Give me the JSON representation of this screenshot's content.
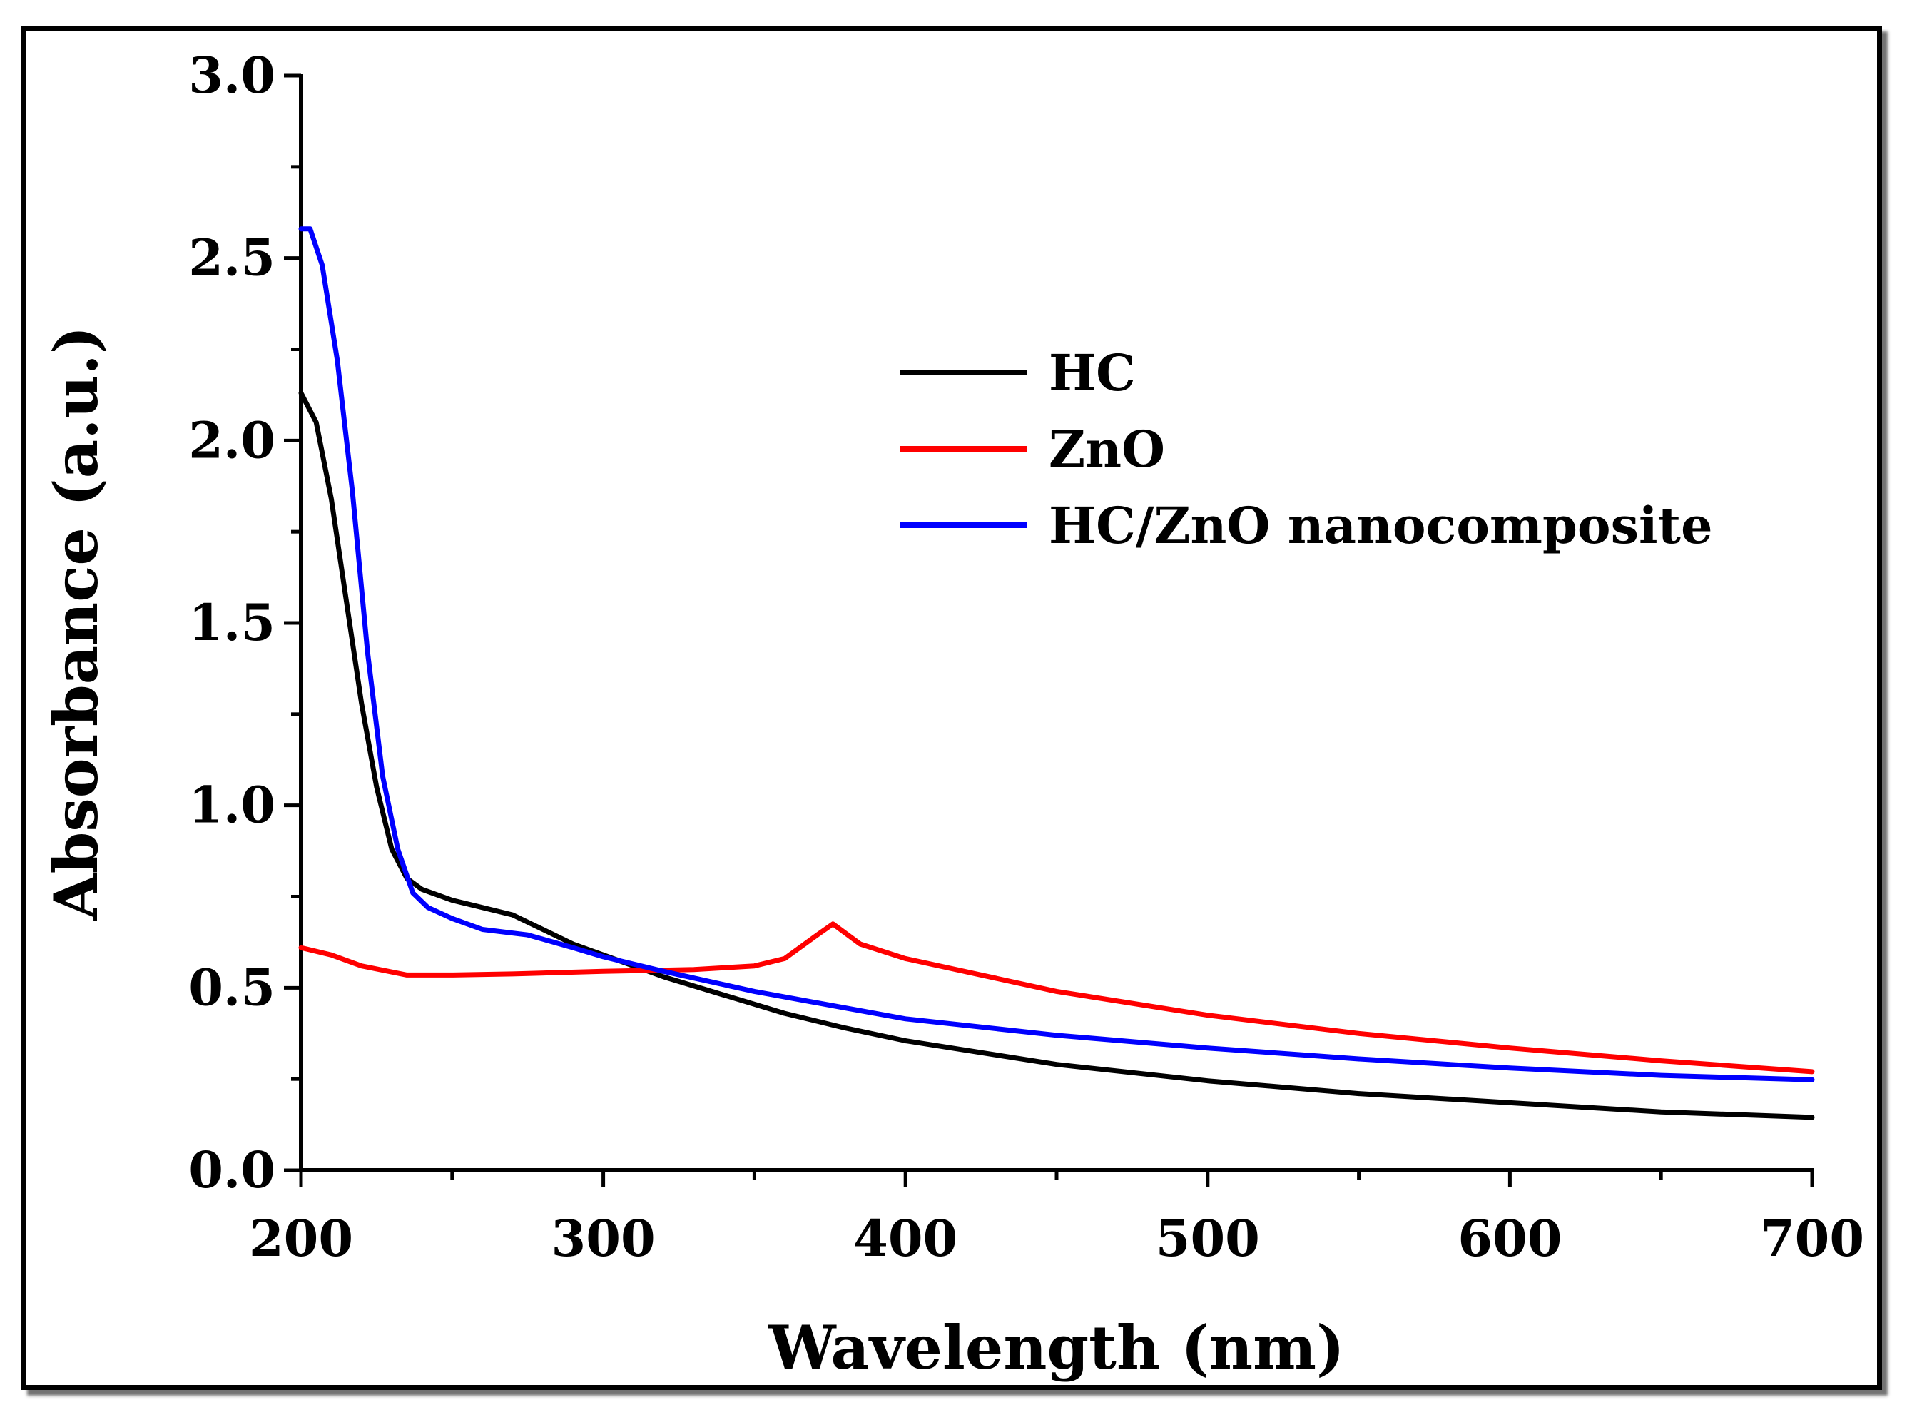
{
  "chart_data": {
    "type": "line",
    "title": "",
    "xlabel": "Wavelength (nm)",
    "ylabel": "Absorbance (a.u.)",
    "xlim": [
      200,
      700
    ],
    "ylim": [
      0.0,
      3.0
    ],
    "x_ticks": [
      "200",
      "300",
      "400",
      "500",
      "600",
      "700"
    ],
    "y_ticks": [
      "0.0",
      "0.5",
      "1.0",
      "1.5",
      "2.0",
      "2.5",
      "3.0"
    ],
    "legend_position": "upper-right",
    "series": [
      {
        "name": "HC",
        "color": "#000000",
        "points": [
          [
            200,
            2.13
          ],
          [
            205,
            2.05
          ],
          [
            210,
            1.84
          ],
          [
            215,
            1.56
          ],
          [
            220,
            1.28
          ],
          [
            225,
            1.05
          ],
          [
            230,
            0.88
          ],
          [
            235,
            0.8
          ],
          [
            240,
            0.77
          ],
          [
            250,
            0.74
          ],
          [
            260,
            0.72
          ],
          [
            270,
            0.7
          ],
          [
            280,
            0.66
          ],
          [
            290,
            0.62
          ],
          [
            300,
            0.59
          ],
          [
            310,
            0.56
          ],
          [
            320,
            0.53
          ],
          [
            340,
            0.48
          ],
          [
            360,
            0.43
          ],
          [
            380,
            0.39
          ],
          [
            400,
            0.355
          ],
          [
            450,
            0.29
          ],
          [
            500,
            0.245
          ],
          [
            550,
            0.21
          ],
          [
            600,
            0.185
          ],
          [
            650,
            0.16
          ],
          [
            700,
            0.145
          ]
        ]
      },
      {
        "name": "ZnO",
        "color": "#ff0000",
        "points": [
          [
            200,
            0.61
          ],
          [
            210,
            0.59
          ],
          [
            220,
            0.56
          ],
          [
            235,
            0.535
          ],
          [
            250,
            0.535
          ],
          [
            270,
            0.538
          ],
          [
            300,
            0.545
          ],
          [
            330,
            0.55
          ],
          [
            350,
            0.56
          ],
          [
            360,
            0.58
          ],
          [
            370,
            0.64
          ],
          [
            376,
            0.675
          ],
          [
            385,
            0.62
          ],
          [
            400,
            0.58
          ],
          [
            450,
            0.49
          ],
          [
            500,
            0.425
          ],
          [
            550,
            0.375
          ],
          [
            600,
            0.335
          ],
          [
            650,
            0.3
          ],
          [
            700,
            0.27
          ]
        ]
      },
      {
        "name": "HC/ZnO nanocomposite",
        "color": "#0000ff",
        "points": [
          [
            200,
            2.58
          ],
          [
            203,
            2.58
          ],
          [
            207,
            2.48
          ],
          [
            212,
            2.22
          ],
          [
            217,
            1.86
          ],
          [
            222,
            1.42
          ],
          [
            227,
            1.08
          ],
          [
            232,
            0.88
          ],
          [
            237,
            0.76
          ],
          [
            242,
            0.72
          ],
          [
            250,
            0.69
          ],
          [
            260,
            0.66
          ],
          [
            275,
            0.645
          ],
          [
            290,
            0.61
          ],
          [
            300,
            0.585
          ],
          [
            320,
            0.545
          ],
          [
            350,
            0.49
          ],
          [
            380,
            0.445
          ],
          [
            400,
            0.415
          ],
          [
            450,
            0.37
          ],
          [
            500,
            0.335
          ],
          [
            550,
            0.305
          ],
          [
            600,
            0.28
          ],
          [
            650,
            0.26
          ],
          [
            700,
            0.248
          ]
        ]
      }
    ]
  }
}
